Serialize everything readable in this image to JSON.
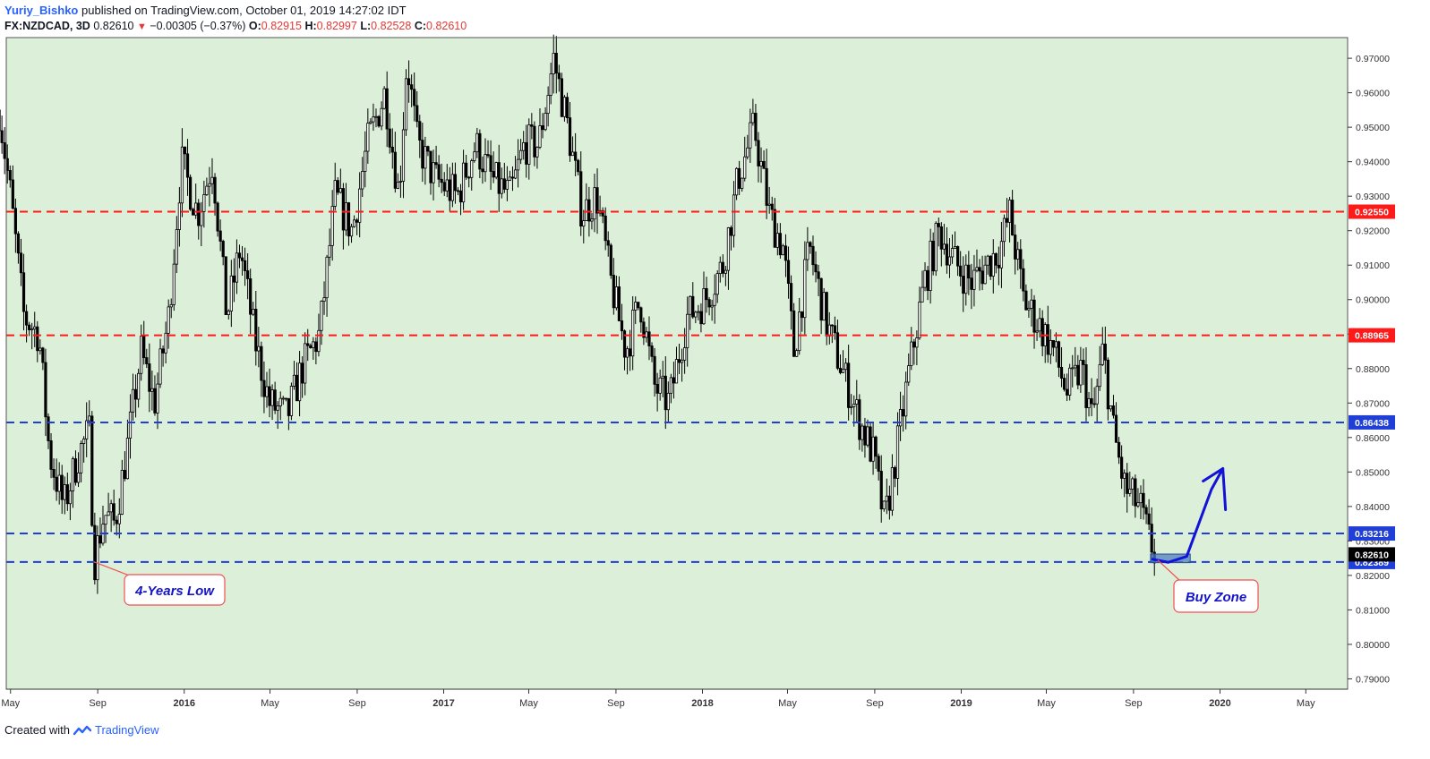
{
  "header": {
    "author": "Yuriy_Bishko",
    "published_text": "published on TradingView.com, October 01, 2019 14:27:02 IDT",
    "symbol": "FX:NZDCAD, 3D",
    "last": "0.82610",
    "change": "−0.00305 (−0.37%)",
    "open_label": "O:",
    "open": "0.82915",
    "high_label": "H:",
    "high": "0.82997",
    "low_label": "L:",
    "low": "0.82528",
    "close_label": "C:",
    "close": "0.82610"
  },
  "footer": {
    "created_with": "Created with",
    "brand": "TradingView"
  },
  "colors": {
    "plot_bg": "#dcefd9",
    "candle": "#000000",
    "resistance": "#ff1a1a",
    "support": "#1f3fd6",
    "arrow": "#1212d8",
    "zone_fill": "#4f7fc0",
    "callout_border": "#f15050",
    "callout_text": "#1414c8",
    "last_price_bg": "#000000"
  },
  "chart_data": {
    "type": "candlestick",
    "title": "FX:NZDCAD, 3D",
    "ylim": [
      0.787,
      0.976
    ],
    "y_ticks": [
      "0.79000",
      "0.80000",
      "0.81000",
      "0.82000",
      "0.83000",
      "0.84000",
      "0.85000",
      "0.86000",
      "0.87000",
      "0.88000",
      "0.89000",
      "0.90000",
      "0.91000",
      "0.92000",
      "0.93000",
      "0.94000",
      "0.95000",
      "0.96000",
      "0.97000"
    ],
    "x_ticks": [
      {
        "label": "May",
        "date": "2015-05"
      },
      {
        "label": "Sep",
        "date": "2015-09"
      },
      {
        "label": "2016",
        "date": "2016-01"
      },
      {
        "label": "May",
        "date": "2016-05"
      },
      {
        "label": "Sep",
        "date": "2016-09"
      },
      {
        "label": "2017",
        "date": "2017-01"
      },
      {
        "label": "May",
        "date": "2017-05"
      },
      {
        "label": "Sep",
        "date": "2017-09"
      },
      {
        "label": "2018",
        "date": "2018-01"
      },
      {
        "label": "May",
        "date": "2018-05"
      },
      {
        "label": "Sep",
        "date": "2018-09"
      },
      {
        "label": "2019",
        "date": "2019-01"
      },
      {
        "label": "May",
        "date": "2019-05"
      },
      {
        "label": "Sep",
        "date": "2019-09"
      },
      {
        "label": "2020",
        "date": "2020-01"
      },
      {
        "label": "May",
        "date": "2020-05"
      }
    ],
    "grid": false,
    "price_path": [
      {
        "date": "2015-04-15",
        "close": 0.955
      },
      {
        "date": "2015-05-01",
        "close": 0.93
      },
      {
        "date": "2015-05-20",
        "close": 0.895
      },
      {
        "date": "2015-06-10",
        "close": 0.89
      },
      {
        "date": "2015-06-25",
        "close": 0.855
      },
      {
        "date": "2015-07-15",
        "close": 0.84
      },
      {
        "date": "2015-08-05",
        "close": 0.855
      },
      {
        "date": "2015-08-20",
        "close": 0.862
      },
      {
        "date": "2015-08-27",
        "close": 0.8239
      },
      {
        "date": "2015-09-10",
        "close": 0.838
      },
      {
        "date": "2015-09-25",
        "close": 0.835
      },
      {
        "date": "2015-10-15",
        "close": 0.86
      },
      {
        "date": "2015-11-01",
        "close": 0.885
      },
      {
        "date": "2015-11-20",
        "close": 0.87
      },
      {
        "date": "2015-12-10",
        "close": 0.895
      },
      {
        "date": "2015-12-28",
        "close": 0.94
      },
      {
        "date": "2016-01-20",
        "close": 0.925
      },
      {
        "date": "2016-02-10",
        "close": 0.94
      },
      {
        "date": "2016-03-01",
        "close": 0.895
      },
      {
        "date": "2016-03-20",
        "close": 0.915
      },
      {
        "date": "2016-04-10",
        "close": 0.888
      },
      {
        "date": "2016-04-30",
        "close": 0.87
      },
      {
        "date": "2016-05-25",
        "close": 0.866
      },
      {
        "date": "2016-06-15",
        "close": 0.88
      },
      {
        "date": "2016-07-10",
        "close": 0.89
      },
      {
        "date": "2016-08-01",
        "close": 0.93
      },
      {
        "date": "2016-08-25",
        "close": 0.92
      },
      {
        "date": "2016-09-15",
        "close": 0.945
      },
      {
        "date": "2016-10-10",
        "close": 0.96
      },
      {
        "date": "2016-10-30",
        "close": 0.93
      },
      {
        "date": "2016-11-10",
        "close": 0.97
      },
      {
        "date": "2016-11-25",
        "close": 0.945
      },
      {
        "date": "2016-12-20",
        "close": 0.935
      },
      {
        "date": "2017-01-20",
        "close": 0.93
      },
      {
        "date": "2017-02-15",
        "close": 0.945
      },
      {
        "date": "2017-03-10",
        "close": 0.935
      },
      {
        "date": "2017-04-05",
        "close": 0.93
      },
      {
        "date": "2017-04-25",
        "close": 0.945
      },
      {
        "date": "2017-05-15",
        "close": 0.945
      },
      {
        "date": "2017-06-05",
        "close": 0.97
      },
      {
        "date": "2017-06-25",
        "close": 0.95
      },
      {
        "date": "2017-07-15",
        "close": 0.925
      },
      {
        "date": "2017-08-05",
        "close": 0.93
      },
      {
        "date": "2017-08-25",
        "close": 0.905
      },
      {
        "date": "2017-09-15",
        "close": 0.885
      },
      {
        "date": "2017-10-05",
        "close": 0.9
      },
      {
        "date": "2017-10-25",
        "close": 0.875
      },
      {
        "date": "2017-11-15",
        "close": 0.87
      },
      {
        "date": "2017-12-10",
        "close": 0.895
      },
      {
        "date": "2018-01-05",
        "close": 0.9
      },
      {
        "date": "2018-01-30",
        "close": 0.91
      },
      {
        "date": "2018-02-20",
        "close": 0.935
      },
      {
        "date": "2018-03-15",
        "close": 0.95
      },
      {
        "date": "2018-04-05",
        "close": 0.925
      },
      {
        "date": "2018-04-25",
        "close": 0.915
      },
      {
        "date": "2018-05-10",
        "close": 0.885
      },
      {
        "date": "2018-06-01",
        "close": 0.915
      },
      {
        "date": "2018-06-25",
        "close": 0.893
      },
      {
        "date": "2018-07-20",
        "close": 0.878
      },
      {
        "date": "2018-08-10",
        "close": 0.865
      },
      {
        "date": "2018-08-30",
        "close": 0.855
      },
      {
        "date": "2018-09-15",
        "close": 0.835
      },
      {
        "date": "2018-10-01",
        "close": 0.855
      },
      {
        "date": "2018-10-20",
        "close": 0.88
      },
      {
        "date": "2018-11-10",
        "close": 0.905
      },
      {
        "date": "2018-12-01",
        "close": 0.92
      },
      {
        "date": "2018-12-25",
        "close": 0.91
      },
      {
        "date": "2019-01-15",
        "close": 0.905
      },
      {
        "date": "2019-02-05",
        "close": 0.91
      },
      {
        "date": "2019-02-25",
        "close": 0.915
      },
      {
        "date": "2019-03-10",
        "close": 0.925
      },
      {
        "date": "2019-03-30",
        "close": 0.9
      },
      {
        "date": "2019-04-20",
        "close": 0.893
      },
      {
        "date": "2019-05-10",
        "close": 0.886
      },
      {
        "date": "2019-05-30",
        "close": 0.873
      },
      {
        "date": "2019-06-20",
        "close": 0.88
      },
      {
        "date": "2019-07-05",
        "close": 0.865
      },
      {
        "date": "2019-07-20",
        "close": 0.885
      },
      {
        "date": "2019-08-05",
        "close": 0.86
      },
      {
        "date": "2019-08-20",
        "close": 0.845
      },
      {
        "date": "2019-09-10",
        "close": 0.84
      },
      {
        "date": "2019-09-22",
        "close": 0.831
      },
      {
        "date": "2019-10-01",
        "close": 0.8261
      }
    ],
    "horizontal_levels": [
      {
        "price": 0.9255,
        "label": "0.92550",
        "color": "#ff1a1a",
        "style": "dashed"
      },
      {
        "price": 0.88965,
        "label": "0.88965",
        "color": "#ff1a1a",
        "style": "dashed"
      },
      {
        "price": 0.86438,
        "label": "0.86438",
        "color": "#1f3fd6",
        "style": "dashed"
      },
      {
        "price": 0.83216,
        "label": "0.83216",
        "color": "#1f3fd6",
        "style": "dashed"
      },
      {
        "price": 0.82389,
        "label": "0.82389",
        "color": "#1f3fd6",
        "style": "dashed"
      }
    ],
    "last_price": {
      "price": 0.8261,
      "label": "0.82610"
    },
    "annotations": [
      {
        "text": "4-Years Low",
        "date": "2015-08-27",
        "price": 0.8239
      },
      {
        "text": "Buy Zone",
        "date": "2019-10-05",
        "price": 0.8245
      }
    ],
    "buy_zone": {
      "date_start": "2019-09-25",
      "date_end": "2019-11-20",
      "price_low": 0.8237,
      "price_high": 0.8262
    },
    "projection_arrow": [
      {
        "date": "2019-09-28",
        "price": 0.8247
      },
      {
        "date": "2019-10-20",
        "price": 0.8238
      },
      {
        "date": "2019-11-15",
        "price": 0.8255
      },
      {
        "date": "2019-12-20",
        "price": 0.845
      },
      {
        "date": "2020-01-05",
        "price": 0.851
      }
    ]
  }
}
